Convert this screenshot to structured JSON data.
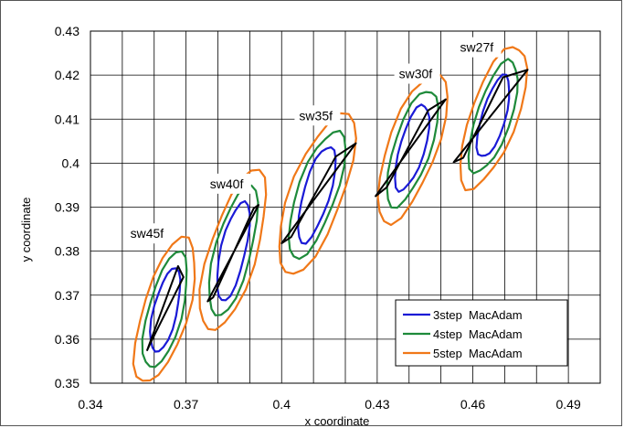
{
  "chart_data": {
    "type": "line",
    "title": "",
    "xlabel": "x coordinate",
    "ylabel": "y coordinate",
    "xlim": [
      0.34,
      0.5
    ],
    "ylim": [
      0.35,
      0.43
    ],
    "x_ticks": [
      "0.34",
      "0.37",
      "0.4",
      "0.43",
      "0.46",
      "0.49"
    ],
    "y_ticks": [
      "0.35",
      "0.36",
      "0.37",
      "0.38",
      "0.39",
      "0.4",
      "0.41",
      "0.42",
      "0.43"
    ],
    "x_minor_step": 0.01,
    "y_step": 0.01,
    "grid": true,
    "legend_position": "bottom-right",
    "colors": {
      "3step": "#1a1ad6",
      "4step": "#1e8a3a",
      "5step": "#f07818",
      "boundary": "#000000"
    },
    "series": [
      {
        "name": "3step  MacAdam",
        "color_key": "3step"
      },
      {
        "name": "4step  MacAdam",
        "color_key": "4step"
      },
      {
        "name": "5step  MacAdam",
        "color_key": "5step"
      }
    ],
    "groups": [
      {
        "label": "sw45f",
        "center": [
          0.3635,
          0.3665
        ],
        "label_at": [
          0.3525,
          0.3832
        ],
        "quad": [
          [
            0.3578,
            0.3575
          ],
          [
            0.3675,
            0.3766
          ],
          [
            0.3692,
            0.3741
          ],
          [
            0.3593,
            0.3598
          ]
        ],
        "rings": [
          {
            "level": "3step",
            "a": 0.01,
            "b": 0.0036,
            "angle_deg": 71
          },
          {
            "level": "4step",
            "a": 0.014,
            "b": 0.0052,
            "angle_deg": 69
          },
          {
            "level": "5step",
            "a": 0.0178,
            "b": 0.0069,
            "angle_deg": 66
          }
        ]
      },
      {
        "label": "sw40f",
        "center": [
          0.3848,
          0.38
        ],
        "label_at": [
          0.3775,
          0.3945
        ],
        "quad": [
          [
            0.3768,
            0.3686
          ],
          [
            0.3928,
            0.3905
          ],
          [
            0.3912,
            0.3897
          ],
          [
            0.3785,
            0.3695
          ]
        ],
        "rings": [
          {
            "level": "3step",
            "a": 0.0118,
            "b": 0.0038,
            "angle_deg": 72
          },
          {
            "level": "4step",
            "a": 0.0158,
            "b": 0.0055,
            "angle_deg": 69
          },
          {
            "level": "5step",
            "a": 0.0198,
            "b": 0.0072,
            "angle_deg": 66
          }
        ]
      },
      {
        "label": "sw35f",
        "center": [
          0.411,
          0.393
        ],
        "label_at": [
          0.4055,
          0.41
        ],
        "quad": [
          [
            0.4,
            0.3818
          ],
          [
            0.4233,
            0.4045
          ],
          [
            0.417,
            0.4015
          ],
          [
            0.403,
            0.3832
          ]
        ],
        "rings": [
          {
            "level": "3step",
            "a": 0.0118,
            "b": 0.004,
            "angle_deg": 67
          },
          {
            "level": "4step",
            "a": 0.016,
            "b": 0.0058,
            "angle_deg": 63
          },
          {
            "level": "5step",
            "a": 0.0205,
            "b": 0.0078,
            "angle_deg": 61
          }
        ]
      },
      {
        "label": "sw30f",
        "center": [
          0.441,
          0.4035
        ],
        "label_at": [
          0.4368,
          0.4195
        ],
        "quad": [
          [
            0.4295,
            0.3925
          ],
          [
            0.4515,
            0.4145
          ],
          [
            0.446,
            0.412
          ],
          [
            0.433,
            0.3945
          ]
        ],
        "rings": [
          {
            "level": "3step",
            "a": 0.0105,
            "b": 0.0038,
            "angle_deg": 67
          },
          {
            "level": "4step",
            "a": 0.0145,
            "b": 0.0055,
            "angle_deg": 64
          },
          {
            "level": "5step",
            "a": 0.0188,
            "b": 0.0073,
            "angle_deg": 62
          }
        ]
      },
      {
        "label": "sw27f",
        "center": [
          0.4665,
          0.4105
        ],
        "label_at": [
          0.456,
          0.4255
        ],
        "quad": [
          [
            0.454,
            0.4002
          ],
          [
            0.4772,
            0.4212
          ],
          [
            0.4695,
            0.4195
          ],
          [
            0.457,
            0.4012
          ]
        ],
        "rings": [
          {
            "level": "3step",
            "a": 0.01,
            "b": 0.0036,
            "angle_deg": 67
          },
          {
            "level": "4step",
            "a": 0.014,
            "b": 0.0052,
            "angle_deg": 64
          },
          {
            "level": "5step",
            "a": 0.018,
            "b": 0.007,
            "angle_deg": 62
          }
        ]
      }
    ]
  }
}
